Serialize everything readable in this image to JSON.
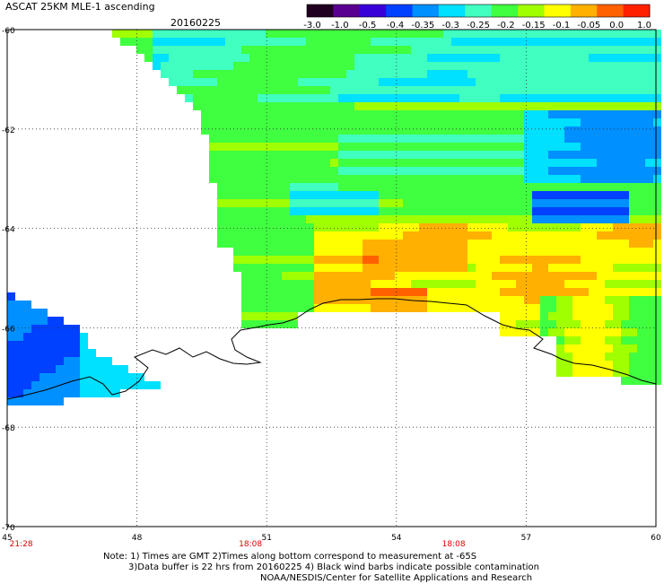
{
  "header": {
    "title": "ASCAT 25KM MLE-1 ascending",
    "date": "20160225"
  },
  "colorbar": {
    "labels": [
      "-3.0",
      "-1.0",
      "-0.5",
      "-0.4",
      "-0.35",
      "-0.3",
      "-0.25",
      "-0.2",
      "-0.15",
      "-0.1",
      "-0.05",
      "0.0",
      "1.0"
    ],
    "colors": [
      "#200020",
      "#5a0090",
      "#3a00d8",
      "#0040ff",
      "#0090ff",
      "#00e0ff",
      "#40ffc0",
      "#40ff40",
      "#a0ff00",
      "#ffff00",
      "#ffb000",
      "#ff6000",
      "#ff2000"
    ]
  },
  "map": {
    "lon_ticks": [
      "45",
      "48",
      "51",
      "54",
      "57",
      "60"
    ],
    "lat_ticks": [
      "-60",
      "-62",
      "-64",
      "-66",
      "-68",
      "-70"
    ],
    "lon_range": [
      45,
      60
    ],
    "lat_range": [
      -60,
      -70
    ],
    "times": [
      {
        "label": "21:28",
        "lon": 45.2
      },
      {
        "label": "18:08",
        "lon": 50.5
      },
      {
        "label": "18:08",
        "lon": 55.2
      }
    ],
    "time_color": "#e00000"
  },
  "notes": [
    "Note: 1) Times are GMT 2)Times along bottom correspond to measurement at -65S",
    "3)Data buffer is 22 hrs from 20160225 4) Black wind barbs indicate possible contamination",
    "NOAA/NESDIS/Center for Satellite Applications and Research"
  ]
}
